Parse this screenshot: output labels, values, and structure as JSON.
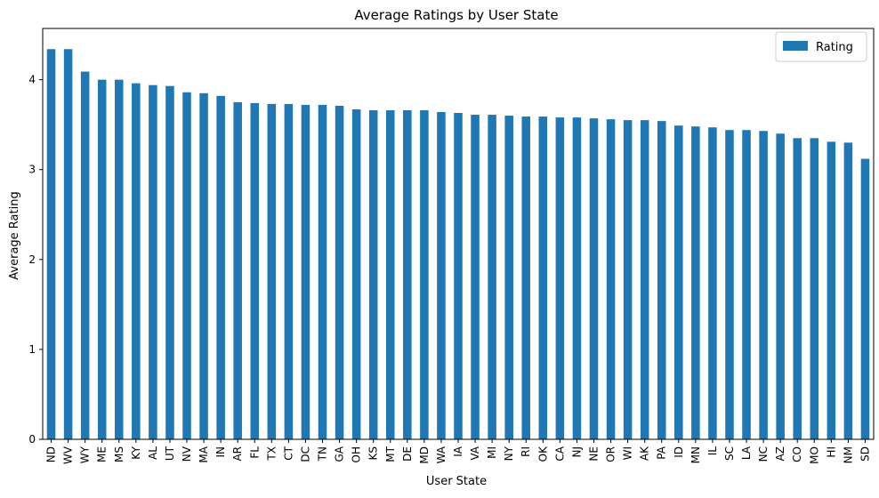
{
  "chart_data": {
    "type": "bar",
    "title": "Average Ratings by User State",
    "xlabel": "User State",
    "ylabel": "Average Rating",
    "ylim": [
      0,
      4.57
    ],
    "yticks": [
      0,
      1,
      2,
      3,
      4
    ],
    "grid": false,
    "legend_position": "top-right",
    "bar_color": "#1f77b4",
    "categories": [
      "ND",
      "WV",
      "WY",
      "ME",
      "MS",
      "KY",
      "AL",
      "UT",
      "NV",
      "MA",
      "IN",
      "AR",
      "FL",
      "TX",
      "CT",
      "DC",
      "TN",
      "GA",
      "OH",
      "KS",
      "MT",
      "DE",
      "MD",
      "WA",
      "IA",
      "VA",
      "MI",
      "NY",
      "RI",
      "OK",
      "CA",
      "NJ",
      "NE",
      "OR",
      "WI",
      "AK",
      "PA",
      "ID",
      "MN",
      "IL",
      "SC",
      "LA",
      "NC",
      "AZ",
      "CO",
      "MO",
      "HI",
      "NM",
      "SD"
    ],
    "series": [
      {
        "name": "Rating",
        "values": [
          4.34,
          4.34,
          4.09,
          4.0,
          4.0,
          3.96,
          3.94,
          3.93,
          3.86,
          3.85,
          3.82,
          3.75,
          3.74,
          3.73,
          3.73,
          3.72,
          3.72,
          3.71,
          3.67,
          3.66,
          3.66,
          3.66,
          3.66,
          3.64,
          3.63,
          3.61,
          3.61,
          3.6,
          3.59,
          3.59,
          3.58,
          3.58,
          3.57,
          3.56,
          3.55,
          3.55,
          3.54,
          3.49,
          3.48,
          3.47,
          3.44,
          3.44,
          3.43,
          3.4,
          3.35,
          3.35,
          3.31,
          3.3,
          3.12
        ]
      }
    ]
  }
}
